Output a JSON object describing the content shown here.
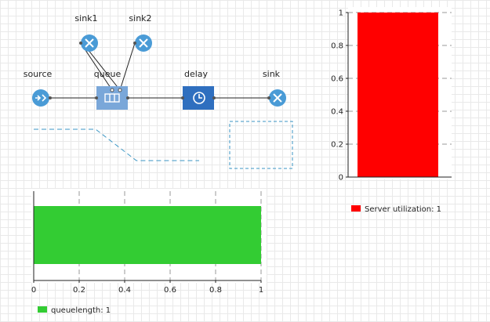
{
  "model": {
    "blocks": {
      "source": {
        "label": "source",
        "icon": "arrow-in-icon"
      },
      "queue": {
        "label": "queue",
        "icon": "queue-icon"
      },
      "delay": {
        "label": "delay",
        "icon": "clock-icon"
      },
      "sink": {
        "label": "sink",
        "icon": "close-icon"
      },
      "sink1": {
        "label": "sink1",
        "icon": "close-icon"
      },
      "sink2": {
        "label": "sink2",
        "icon": "close-icon"
      }
    }
  },
  "colors": {
    "block_blue": "#4a9bd6",
    "queue_fill": "#7aa7d9",
    "delay_fill": "#2f6fbf",
    "dashed": "#3b96c4",
    "util_bar": "#ff0000",
    "queue_bar": "#33cc33"
  },
  "chart_data": [
    {
      "type": "bar",
      "orientation": "vertical",
      "categories": [
        ""
      ],
      "series": [
        {
          "name": "Server utilization: 1",
          "values": [
            1
          ]
        }
      ],
      "ylim": [
        0,
        1
      ],
      "yticks": [
        "0",
        "0.2",
        "0.4",
        "0.6",
        "0.8",
        "1"
      ],
      "grid": true,
      "legend": "bottom-left"
    },
    {
      "type": "bar",
      "orientation": "horizontal",
      "categories": [
        ""
      ],
      "series": [
        {
          "name": "queuelength: 1",
          "values": [
            1
          ]
        }
      ],
      "xlim": [
        0,
        1
      ],
      "xticks": [
        "0",
        "0.2",
        "0.4",
        "0.6",
        "0.8",
        "1"
      ],
      "grid": true,
      "legend": "bottom-left"
    }
  ]
}
